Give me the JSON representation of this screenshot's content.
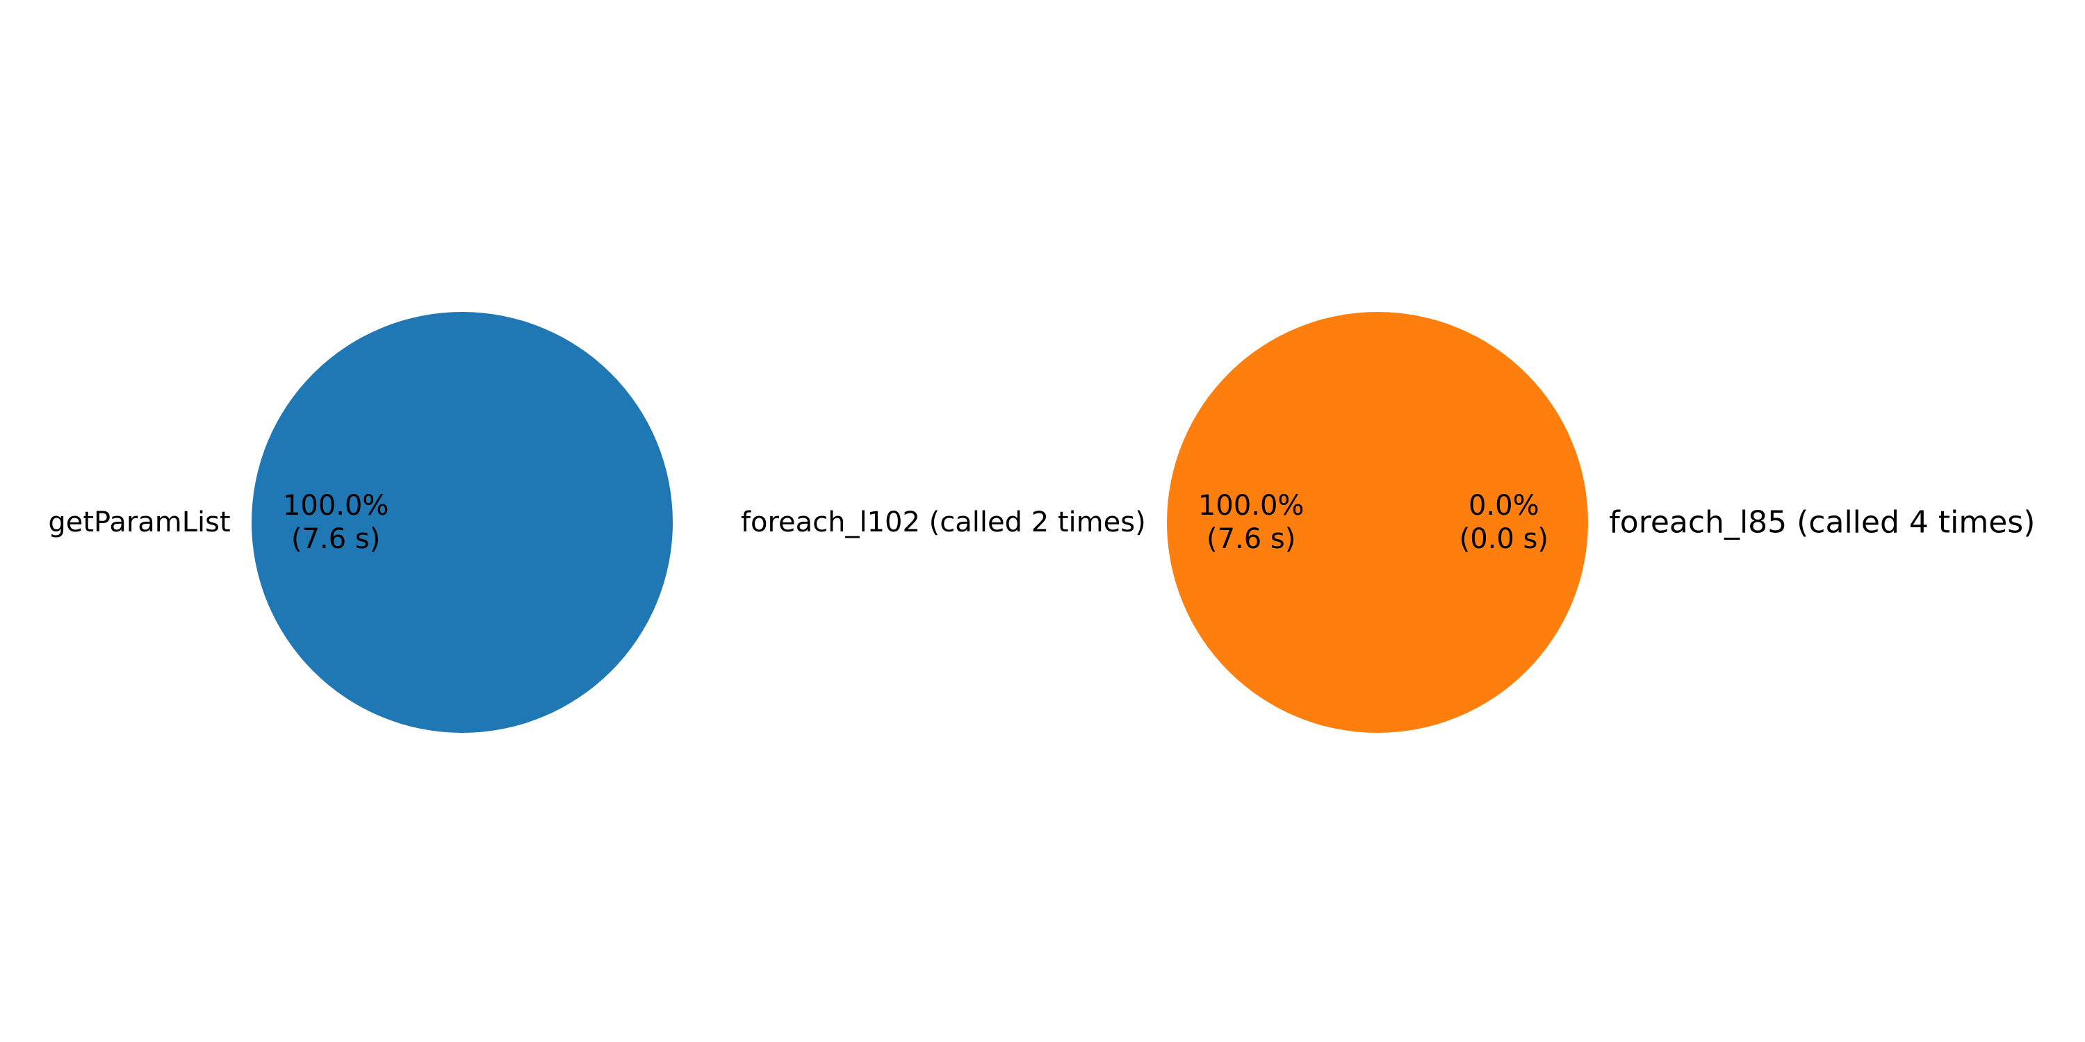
{
  "chart_data": [
    {
      "type": "pie",
      "slices": [
        {
          "label": "getParamList",
          "value": 7.6,
          "percent_text": "100.0%",
          "time_text": "(7.6 s)",
          "color": "#1f77b4"
        }
      ]
    },
    {
      "type": "pie",
      "slices": [
        {
          "label": "foreach_l102 (called 2 times)",
          "value": 7.6,
          "percent_text": "100.0%",
          "time_text": "(7.6 s)",
          "color": "#ff7f0e"
        },
        {
          "label": "foreach_l85 (called 4 times)",
          "value": 0.0,
          "percent_text": "0.0%",
          "time_text": "(0.0 s)",
          "color": "#1f77b4"
        }
      ]
    }
  ]
}
